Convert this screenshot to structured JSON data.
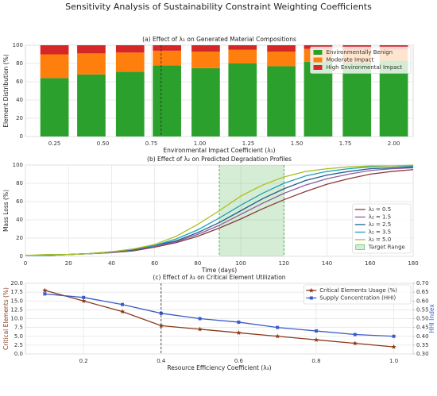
{
  "title": "Sensitivity Analysis of Sustainability Constraint Weighting Coefficients",
  "chart_data": [
    {
      "type": "bar",
      "stacked": true,
      "title": "(a) Effect of λ₁ on Generated Material Compositions",
      "xlabel": "Environmental Impact Coefficient (λ₁)",
      "ylabel": "Element Distribution (%)",
      "x": [
        0.25,
        0.44,
        0.64,
        0.83,
        1.03,
        1.22,
        1.42,
        1.61,
        1.81,
        2.0
      ],
      "series": [
        {
          "name": "Environmentally Benign",
          "color": "#2ca02c",
          "values": [
            64,
            68,
            71,
            78,
            75,
            80,
            77,
            82,
            81,
            83
          ]
        },
        {
          "name": "Moderate Impact",
          "color": "#ff7f0e",
          "values": [
            26,
            23,
            21,
            16,
            18,
            15,
            16,
            14,
            14,
            12
          ]
        },
        {
          "name": "High Environmental Impact",
          "color": "#d62728",
          "values": [
            10,
            9,
            8,
            6,
            7,
            5,
            7,
            4,
            5,
            5
          ]
        }
      ],
      "xlim": [
        0.1,
        2.1
      ],
      "xticks": [
        {
          "value": 0.25,
          "label": "0.25"
        },
        {
          "value": 0.5,
          "label": "0.50"
        },
        {
          "value": 0.75,
          "label": "0.75"
        },
        {
          "value": 1,
          "label": "1.00"
        },
        {
          "value": 1.25,
          "label": "1.25"
        },
        {
          "value": 1.5,
          "label": "1.50"
        },
        {
          "value": 1.75,
          "label": "1.75"
        },
        {
          "value": 2,
          "label": "2.00"
        }
      ],
      "ylim": [
        0,
        100
      ],
      "yticks": [
        0,
        20,
        40,
        60,
        80,
        100
      ],
      "vline": 0.8,
      "grid": true,
      "legend": "upper right"
    },
    {
      "type": "line",
      "title": "(b) Effect of λ₂ on Predicted Degradation Profiles",
      "xlabel": "Time (days)",
      "ylabel": "Mass Loss (%)",
      "x": [
        0,
        10,
        20,
        30,
        40,
        50,
        60,
        70,
        80,
        90,
        100,
        110,
        120,
        130,
        140,
        150,
        160,
        170,
        180
      ],
      "series": [
        {
          "name": "λ₂ = 0.5",
          "color": "#8c3a3a",
          "values": [
            1,
            1,
            2,
            3,
            4,
            6,
            10,
            15,
            22,
            31,
            41,
            52,
            62,
            71,
            79,
            85,
            90,
            93,
            95
          ]
        },
        {
          "name": "λ₂ = 1.5",
          "color": "#8e5ea2",
          "values": [
            1,
            1,
            2,
            3,
            4,
            7,
            11,
            16,
            24,
            34,
            46,
            58,
            69,
            78,
            85,
            90,
            94,
            96,
            97
          ]
        },
        {
          "name": "λ₂ = 2.5",
          "color": "#1f5f8b",
          "values": [
            1,
            1,
            2,
            3,
            5,
            7,
            12,
            17,
            26,
            37,
            50,
            63,
            74,
            83,
            89,
            93,
            96,
            97,
            98
          ]
        },
        {
          "name": "λ₂ = 3.5",
          "color": "#1fa0c0",
          "values": [
            1,
            1,
            2,
            3,
            5,
            8,
            12,
            19,
            29,
            42,
            56,
            69,
            80,
            88,
            93,
            96,
            98,
            99,
            99
          ]
        },
        {
          "name": "λ₂ = 5.0",
          "color": "#a8c020",
          "values": [
            1,
            2,
            2,
            3,
            5,
            8,
            13,
            22,
            35,
            50,
            66,
            78,
            87,
            93,
            96,
            98,
            99,
            99,
            100
          ]
        }
      ],
      "span": {
        "range": [
          90,
          120
        ],
        "label": "Target Range",
        "color": "#2ca02c"
      },
      "xlim": [
        0,
        180
      ],
      "xticks": [
        0,
        20,
        40,
        60,
        80,
        100,
        120,
        140,
        160,
        180
      ],
      "ylim": [
        0,
        100
      ],
      "yticks": [
        0,
        20,
        40,
        60,
        80,
        100
      ],
      "grid": true,
      "legend": "lower right"
    },
    {
      "type": "line",
      "title": "(c) Effect of λ₃ on Critical Element Utilization",
      "xlabel": "Resource Efficiency Coefficient (λ₃)",
      "ylabel": "Critical Elements (%)",
      "y2label": "HHI Index",
      "x": [
        0.1,
        0.2,
        0.3,
        0.4,
        0.5,
        0.6,
        0.7,
        0.8,
        0.9,
        1.0
      ],
      "series": [
        {
          "name": "Critical Elements Usage (%)",
          "color": "#8b3a1a",
          "marker": "star",
          "values": [
            18,
            15,
            12,
            8,
            7,
            6,
            5,
            4,
            3,
            2
          ]
        },
        {
          "name": "Supply Concentration (HHI)",
          "color": "#3a5bc7",
          "marker": "square",
          "axis": "y2",
          "values": [
            0.64,
            0.62,
            0.58,
            0.53,
            0.5,
            0.48,
            0.45,
            0.43,
            0.41,
            0.4
          ]
        }
      ],
      "xlim": [
        0.05,
        1.05
      ],
      "xticks": [
        0.2,
        0.4,
        0.6,
        0.8,
        {
          "value": 1.0,
          "label": "1.0"
        }
      ],
      "ylim": [
        0,
        20
      ],
      "yticks": [
        {
          "value": 0,
          "label": "0.0"
        },
        {
          "value": 2.5,
          "label": "2.5"
        },
        {
          "value": 5,
          "label": "5.0"
        },
        {
          "value": 7.5,
          "label": "7.5"
        },
        {
          "value": 10,
          "label": "10.0"
        },
        {
          "value": 12.5,
          "label": "12.5"
        },
        {
          "value": 15,
          "label": "15.0"
        },
        {
          "value": 17.5,
          "label": "17.5"
        },
        {
          "value": 20,
          "label": "20.0"
        }
      ],
      "y2lim": [
        0.3,
        0.7
      ],
      "y2ticks": [
        {
          "value": 0.3,
          "label": "0.30"
        },
        {
          "value": 0.35,
          "label": "0.35"
        },
        {
          "value": 0.4,
          "label": "0.40"
        },
        {
          "value": 0.45,
          "label": "0.45"
        },
        {
          "value": 0.5,
          "label": "0.50"
        },
        {
          "value": 0.55,
          "label": "0.55"
        },
        {
          "value": 0.6,
          "label": "0.60"
        },
        {
          "value": 0.65,
          "label": "0.65"
        },
        {
          "value": 0.7,
          "label": "0.70"
        }
      ],
      "vline": 0.4,
      "grid": true,
      "legend": "upper right"
    }
  ]
}
